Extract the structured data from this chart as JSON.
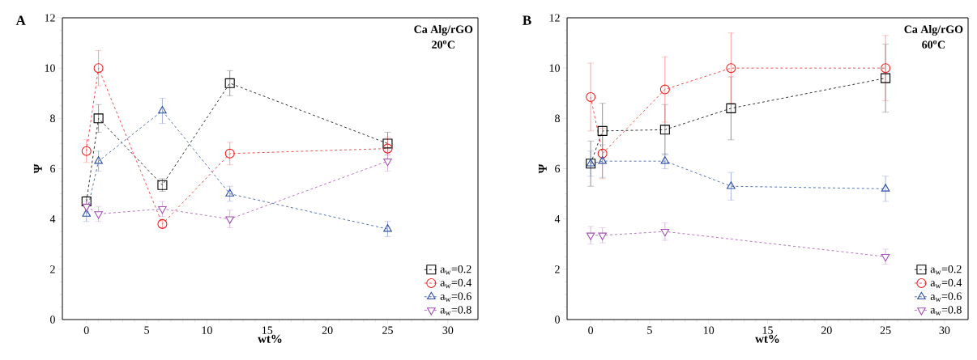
{
  "chart_data": [
    {
      "type": "line",
      "title": "A",
      "xlabel": "wt%",
      "ylabel": "Ψ",
      "annotations": [
        "Ca Alg/rGO",
        "20$^{o}$C"
      ],
      "x": [
        0,
        1,
        6.3,
        11.9,
        25
      ],
      "xlim": [
        -2,
        32.5
      ],
      "ylim": [
        0,
        12
      ],
      "xticks": [
        0,
        5,
        10,
        15,
        20,
        25,
        30
      ],
      "yticks": [
        0,
        2,
        4,
        6,
        8,
        10,
        12
      ],
      "legend": "bottom right",
      "line_style": "dashed",
      "series": [
        {
          "name": "a$_{w}$=0.2",
          "color": "#000000",
          "marker": "square",
          "values": [
            4.7,
            8.0,
            5.35,
            9.4,
            7.0
          ],
          "errors": [
            0.2,
            0.55,
            0.25,
            0.5,
            0.45
          ]
        },
        {
          "name": "a$_{w}$=0.4",
          "color": "#ee2020",
          "marker": "circle",
          "values": [
            6.7,
            10.0,
            3.8,
            6.6,
            6.8
          ],
          "errors": [
            0.45,
            0.7,
            0.15,
            0.45,
            0.45
          ]
        },
        {
          "name": "a$_{w}$=0.6",
          "color": "#2c4fa3",
          "marker": "triangle",
          "values": [
            4.2,
            6.3,
            8.3,
            5.0,
            3.6
          ],
          "errors": [
            0.3,
            0.4,
            0.5,
            0.3,
            0.3
          ]
        },
        {
          "name": "a$_{w}$=0.8",
          "color": "#a450b4",
          "marker": "triangle-down",
          "values": [
            4.5,
            4.2,
            4.4,
            4.0,
            6.3
          ],
          "errors": [
            0.2,
            0.3,
            0.3,
            0.35,
            0.4
          ]
        }
      ]
    },
    {
      "type": "line",
      "title": "B",
      "xlabel": "wt%",
      "ylabel": "Ψ",
      "annotations": [
        "Ca Alg/rGO",
        "60$^{o}$C"
      ],
      "x": [
        0,
        1,
        6.3,
        11.9,
        25
      ],
      "xlim": [
        -2,
        32
      ],
      "ylim": [
        0,
        12
      ],
      "xticks": [
        0,
        5,
        10,
        15,
        20,
        25,
        30
      ],
      "yticks": [
        0,
        2,
        4,
        6,
        8,
        10,
        12
      ],
      "legend": "bottom right",
      "line_style": "dashed",
      "series": [
        {
          "name": "a$_{w}$=0.2",
          "color": "#000000",
          "marker": "square",
          "values": [
            6.2,
            7.5,
            7.55,
            8.4,
            9.6
          ],
          "errors": [
            0.9,
            1.1,
            1.0,
            1.25,
            1.35
          ]
        },
        {
          "name": "a$_{w}$=0.4",
          "color": "#ee2020",
          "marker": "circle",
          "values": [
            8.85,
            6.6,
            9.15,
            10.0,
            10.0
          ],
          "errors": [
            1.35,
            1.0,
            1.3,
            1.4,
            1.3
          ]
        },
        {
          "name": "a$_{w}$=0.6",
          "color": "#2c4fa3",
          "marker": "triangle",
          "values": [
            6.2,
            6.3,
            6.3,
            5.3,
            5.2
          ],
          "errors": [
            0.5,
            0.65,
            0.3,
            0.55,
            0.5
          ]
        },
        {
          "name": "a$_{w}$=0.8",
          "color": "#a450b4",
          "marker": "triangle-down",
          "values": [
            3.35,
            3.35,
            3.5,
            null,
            2.5
          ],
          "errors": [
            0.35,
            0.3,
            0.35,
            null,
            0.3
          ]
        }
      ]
    }
  ]
}
